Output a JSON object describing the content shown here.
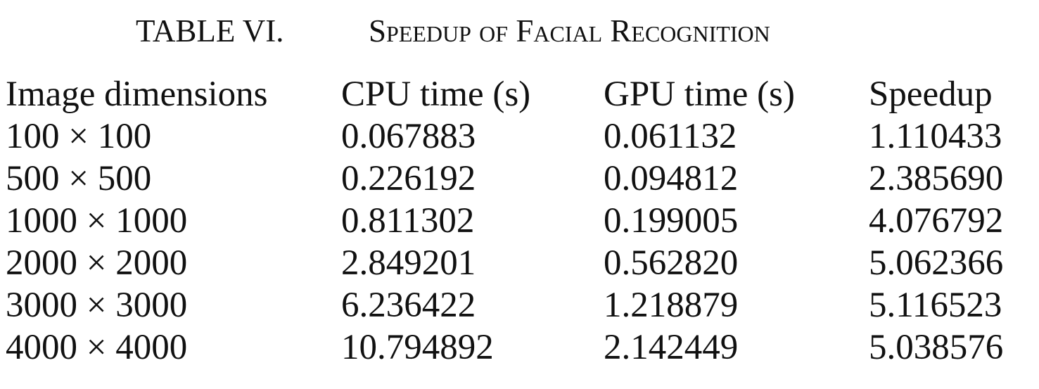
{
  "caption": {
    "label": "TABLE VI.",
    "title": "Speedup of Facial Recognition"
  },
  "table": {
    "columns": [
      "Image dimensions",
      "CPU time (s)",
      "GPU time (s)",
      "Speedup"
    ],
    "rows": [
      [
        "100 × 100",
        "0.067883",
        "0.061132",
        "1.110433"
      ],
      [
        "500 × 500",
        "0.226192",
        "0.094812",
        "2.385690"
      ],
      [
        "1000 × 1000",
        "0.811302",
        "0.199005",
        "4.076792"
      ],
      [
        "2000 × 2000",
        "2.849201",
        "0.562820",
        "5.062366"
      ],
      [
        "3000 × 3000",
        "6.236422",
        "1.218879",
        "5.116523"
      ],
      [
        "4000 × 4000",
        "10.794892",
        "2.142449",
        "5.038576"
      ]
    ]
  }
}
